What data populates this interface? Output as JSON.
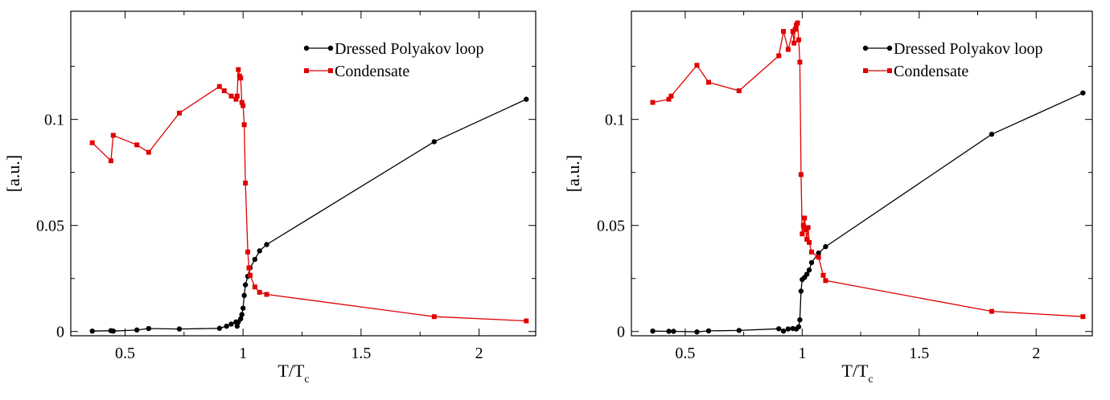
{
  "figure": {
    "panels": [
      {
        "legend": {
          "labels": [
            "Dressed Polyakov loop",
            "Condensate"
          ],
          "colors": [
            "#000000",
            "#e00000"
          ]
        },
        "xlabel_main": "T/T",
        "xlabel_sub": "c",
        "ylabel": "[a.u.]"
      },
      {
        "legend": {
          "labels": [
            "Dressed Polyakov loop",
            "Condensate"
          ],
          "colors": [
            "#000000",
            "#e00000"
          ]
        },
        "xlabel_main": "T/T",
        "xlabel_sub": "c",
        "ylabel": "[a.u.]"
      }
    ]
  },
  "chart_data": [
    {
      "type": "line",
      "title": "",
      "xlabel": "T/Tc",
      "ylabel": "[a.u.]",
      "xlim": [
        0.27,
        2.24
      ],
      "ylim": [
        -0.002,
        0.151
      ],
      "x_ticks": [
        0.5,
        1,
        1.5,
        2
      ],
      "x_tick_labels": [
        "0.5",
        "1",
        "1.5",
        "2"
      ],
      "y_ticks": [
        0,
        0.05,
        0.1
      ],
      "y_tick_labels": [
        "0",
        "0.05",
        "0.1"
      ],
      "grid": false,
      "legend_position": "top-right",
      "series": [
        {
          "name": "Dressed Polyakov loop",
          "color": "#000000",
          "marker": "circle",
          "points": [
            [
              0.361,
              0.0002
            ],
            [
              0.44,
              0.0004
            ],
            [
              0.45,
              0.0002
            ],
            [
              0.55,
              0.0007
            ],
            [
              0.6,
              0.0014
            ],
            [
              0.73,
              0.0012
            ],
            [
              0.9,
              0.0015
            ],
            [
              0.93,
              0.0025
            ],
            [
              0.95,
              0.0035
            ],
            [
              0.97,
              0.0045
            ],
            [
              0.975,
              0.0025
            ],
            [
              0.98,
              0.0045
            ],
            [
              0.99,
              0.006
            ],
            [
              0.995,
              0.008
            ],
            [
              1.0,
              0.011
            ],
            [
              1.005,
              0.017
            ],
            [
              1.01,
              0.022
            ],
            [
              1.02,
              0.026
            ],
            [
              1.03,
              0.03
            ],
            [
              1.05,
              0.034
            ],
            [
              1.07,
              0.038
            ],
            [
              1.1,
              0.041
            ],
            [
              1.81,
              0.0895
            ],
            [
              2.2,
              0.1095
            ]
          ]
        },
        {
          "name": "Condensate",
          "color": "#e00000",
          "marker": "square",
          "points": [
            [
              0.361,
              0.089
            ],
            [
              0.44,
              0.0805
            ],
            [
              0.45,
              0.0925
            ],
            [
              0.55,
              0.088
            ],
            [
              0.6,
              0.0845
            ],
            [
              0.73,
              0.103
            ],
            [
              0.9,
              0.1155
            ],
            [
              0.92,
              0.1135
            ],
            [
              0.95,
              0.111
            ],
            [
              0.97,
              0.1095
            ],
            [
              0.975,
              0.111
            ],
            [
              0.98,
              0.1235
            ],
            [
              0.985,
              0.1205
            ],
            [
              0.99,
              0.1195
            ],
            [
              0.995,
              0.108
            ],
            [
              1.0,
              0.1065
            ],
            [
              1.005,
              0.0975
            ],
            [
              1.01,
              0.07
            ],
            [
              1.02,
              0.0375
            ],
            [
              1.025,
              0.03
            ],
            [
              1.03,
              0.0265
            ],
            [
              1.05,
              0.021
            ],
            [
              1.07,
              0.0185
            ],
            [
              1.1,
              0.0175
            ],
            [
              1.81,
              0.007
            ],
            [
              2.2,
              0.005
            ]
          ]
        }
      ]
    },
    {
      "type": "line",
      "title": "",
      "xlabel": "T/Tc",
      "ylabel": "[a.u.]",
      "xlim": [
        0.27,
        2.24
      ],
      "ylim": [
        -0.002,
        0.151
      ],
      "x_ticks": [
        0.5,
        1,
        1.5,
        2
      ],
      "x_tick_labels": [
        "0.5",
        "1",
        "1.5",
        "2"
      ],
      "y_ticks": [
        0,
        0.05,
        0.1
      ],
      "y_tick_labels": [
        "0",
        "0.05",
        "0.1"
      ],
      "grid": false,
      "legend_position": "top-right",
      "series": [
        {
          "name": "Dressed Polyakov loop",
          "color": "#000000",
          "marker": "circle",
          "points": [
            [
              0.361,
              0.0002
            ],
            [
              0.43,
              0.0001
            ],
            [
              0.45,
              0.0001
            ],
            [
              0.55,
              -0.0002
            ],
            [
              0.6,
              0.0003
            ],
            [
              0.73,
              0.0005
            ],
            [
              0.9,
              0.0013
            ],
            [
              0.92,
              0.0002
            ],
            [
              0.94,
              0.0012
            ],
            [
              0.96,
              0.0014
            ],
            [
              0.975,
              0.0012
            ],
            [
              0.985,
              0.0022
            ],
            [
              0.99,
              0.0055
            ],
            [
              0.995,
              0.019
            ],
            [
              1.0,
              0.0245
            ],
            [
              1.01,
              0.0255
            ],
            [
              1.02,
              0.027
            ],
            [
              1.03,
              0.029
            ],
            [
              1.04,
              0.0325
            ],
            [
              1.07,
              0.037
            ],
            [
              1.1,
              0.04
            ],
            [
              1.81,
              0.093
            ],
            [
              2.2,
              0.1125
            ]
          ]
        },
        {
          "name": "Condensate",
          "color": "#e00000",
          "marker": "square",
          "points": [
            [
              0.361,
              0.108
            ],
            [
              0.43,
              0.1095
            ],
            [
              0.44,
              0.111
            ],
            [
              0.55,
              0.1255
            ],
            [
              0.6,
              0.1175
            ],
            [
              0.73,
              0.1135
            ],
            [
              0.9,
              0.13
            ],
            [
              0.92,
              0.1415
            ],
            [
              0.94,
              0.133
            ],
            [
              0.96,
              0.1415
            ],
            [
              0.965,
              0.136
            ],
            [
              0.97,
              0.1425
            ],
            [
              0.975,
              0.1445
            ],
            [
              0.98,
              0.1455
            ],
            [
              0.985,
              0.1375
            ],
            [
              0.99,
              0.127
            ],
            [
              0.995,
              0.074
            ],
            [
              1.0,
              0.046
            ],
            [
              1.005,
              0.05
            ],
            [
              1.01,
              0.0535
            ],
            [
              1.015,
              0.048
            ],
            [
              1.02,
              0.0435
            ],
            [
              1.025,
              0.049
            ],
            [
              1.03,
              0.042
            ],
            [
              1.04,
              0.0375
            ],
            [
              1.07,
              0.035
            ],
            [
              1.09,
              0.0265
            ],
            [
              1.1,
              0.024
            ],
            [
              1.81,
              0.0095
            ],
            [
              2.2,
              0.007
            ]
          ]
        }
      ]
    }
  ]
}
